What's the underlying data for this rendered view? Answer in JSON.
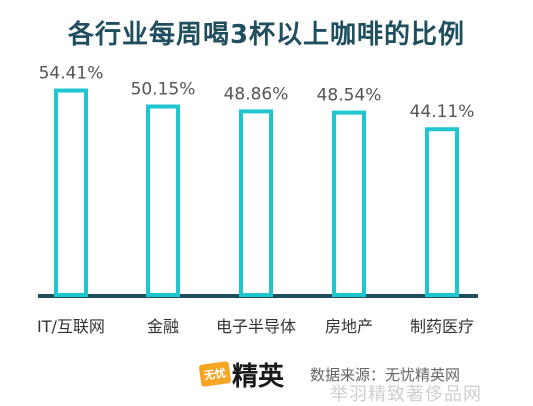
{
  "chart_data": {
    "type": "bar",
    "title": "各行业每周喝3杯以上咖啡的比例",
    "categories": [
      "IT/互联网",
      "金融",
      "电子半导体",
      "房地产",
      "制药医疗"
    ],
    "values": [
      54.41,
      50.15,
      48.86,
      48.54,
      44.11
    ],
    "value_labels": [
      "54.41%",
      "50.15%",
      "48.86%",
      "48.54%",
      "44.11%"
    ],
    "ylim": [
      0,
      62
    ],
    "grid": false,
    "colors": {
      "bar_stroke": "#1ec7cf",
      "bar_fill": "#ffffff",
      "baseline": "#1f4e5f"
    }
  },
  "footer": {
    "logo_badge": "无忧",
    "logo_text": "精英",
    "source": "数据来源：无忧精英网",
    "watermark": "举羽精致著侈品网"
  }
}
